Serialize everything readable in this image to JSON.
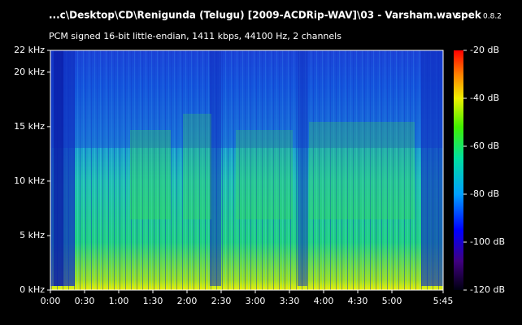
{
  "chart_data": {
    "type": "spectrogram",
    "title": "...c\\Desktop\\CD\\Renigunda (Telugu) [2009-ACDRip-WAV]\\03 - Varsham.wav",
    "app": "spek",
    "version": "0.8.2",
    "subtitle": "PCM signed 16-bit little-endian, 1411 kbps, 44100 Hz, 2 channels",
    "xlim": [
      0,
      345
    ],
    "xticks": [
      {
        "value": 0,
        "label": "0:00"
      },
      {
        "value": 30,
        "label": "0:30"
      },
      {
        "value": 60,
        "label": "1:00"
      },
      {
        "value": 90,
        "label": "1:30"
      },
      {
        "value": 120,
        "label": "2:00"
      },
      {
        "value": 150,
        "label": "2:30"
      },
      {
        "value": 180,
        "label": "3:00"
      },
      {
        "value": 210,
        "label": "3:30"
      },
      {
        "value": 240,
        "label": "4:00"
      },
      {
        "value": 270,
        "label": "4:30"
      },
      {
        "value": 300,
        "label": "5:00"
      },
      {
        "value": 345,
        "label": "5:45"
      }
    ],
    "ylim": [
      0,
      22
    ],
    "yticks": [
      {
        "value": 0,
        "label": "0 kHz"
      },
      {
        "value": 5,
        "label": "5 kHz"
      },
      {
        "value": 10,
        "label": "10 kHz"
      },
      {
        "value": 15,
        "label": "15 kHz"
      },
      {
        "value": 20,
        "label": "20 kHz"
      },
      {
        "value": 22,
        "label": "22 kHz"
      }
    ],
    "colorbar_lim": [
      -120,
      -20
    ],
    "colorbar_ticks": [
      {
        "value": -20,
        "label": "-20 dB"
      },
      {
        "value": -40,
        "label": "-40 dB"
      },
      {
        "value": -60,
        "label": "-60 dB"
      },
      {
        "value": -80,
        "label": "-80 dB"
      },
      {
        "value": -100,
        "label": "-100 dB"
      },
      {
        "value": -120,
        "label": "-120 dB"
      }
    ]
  }
}
